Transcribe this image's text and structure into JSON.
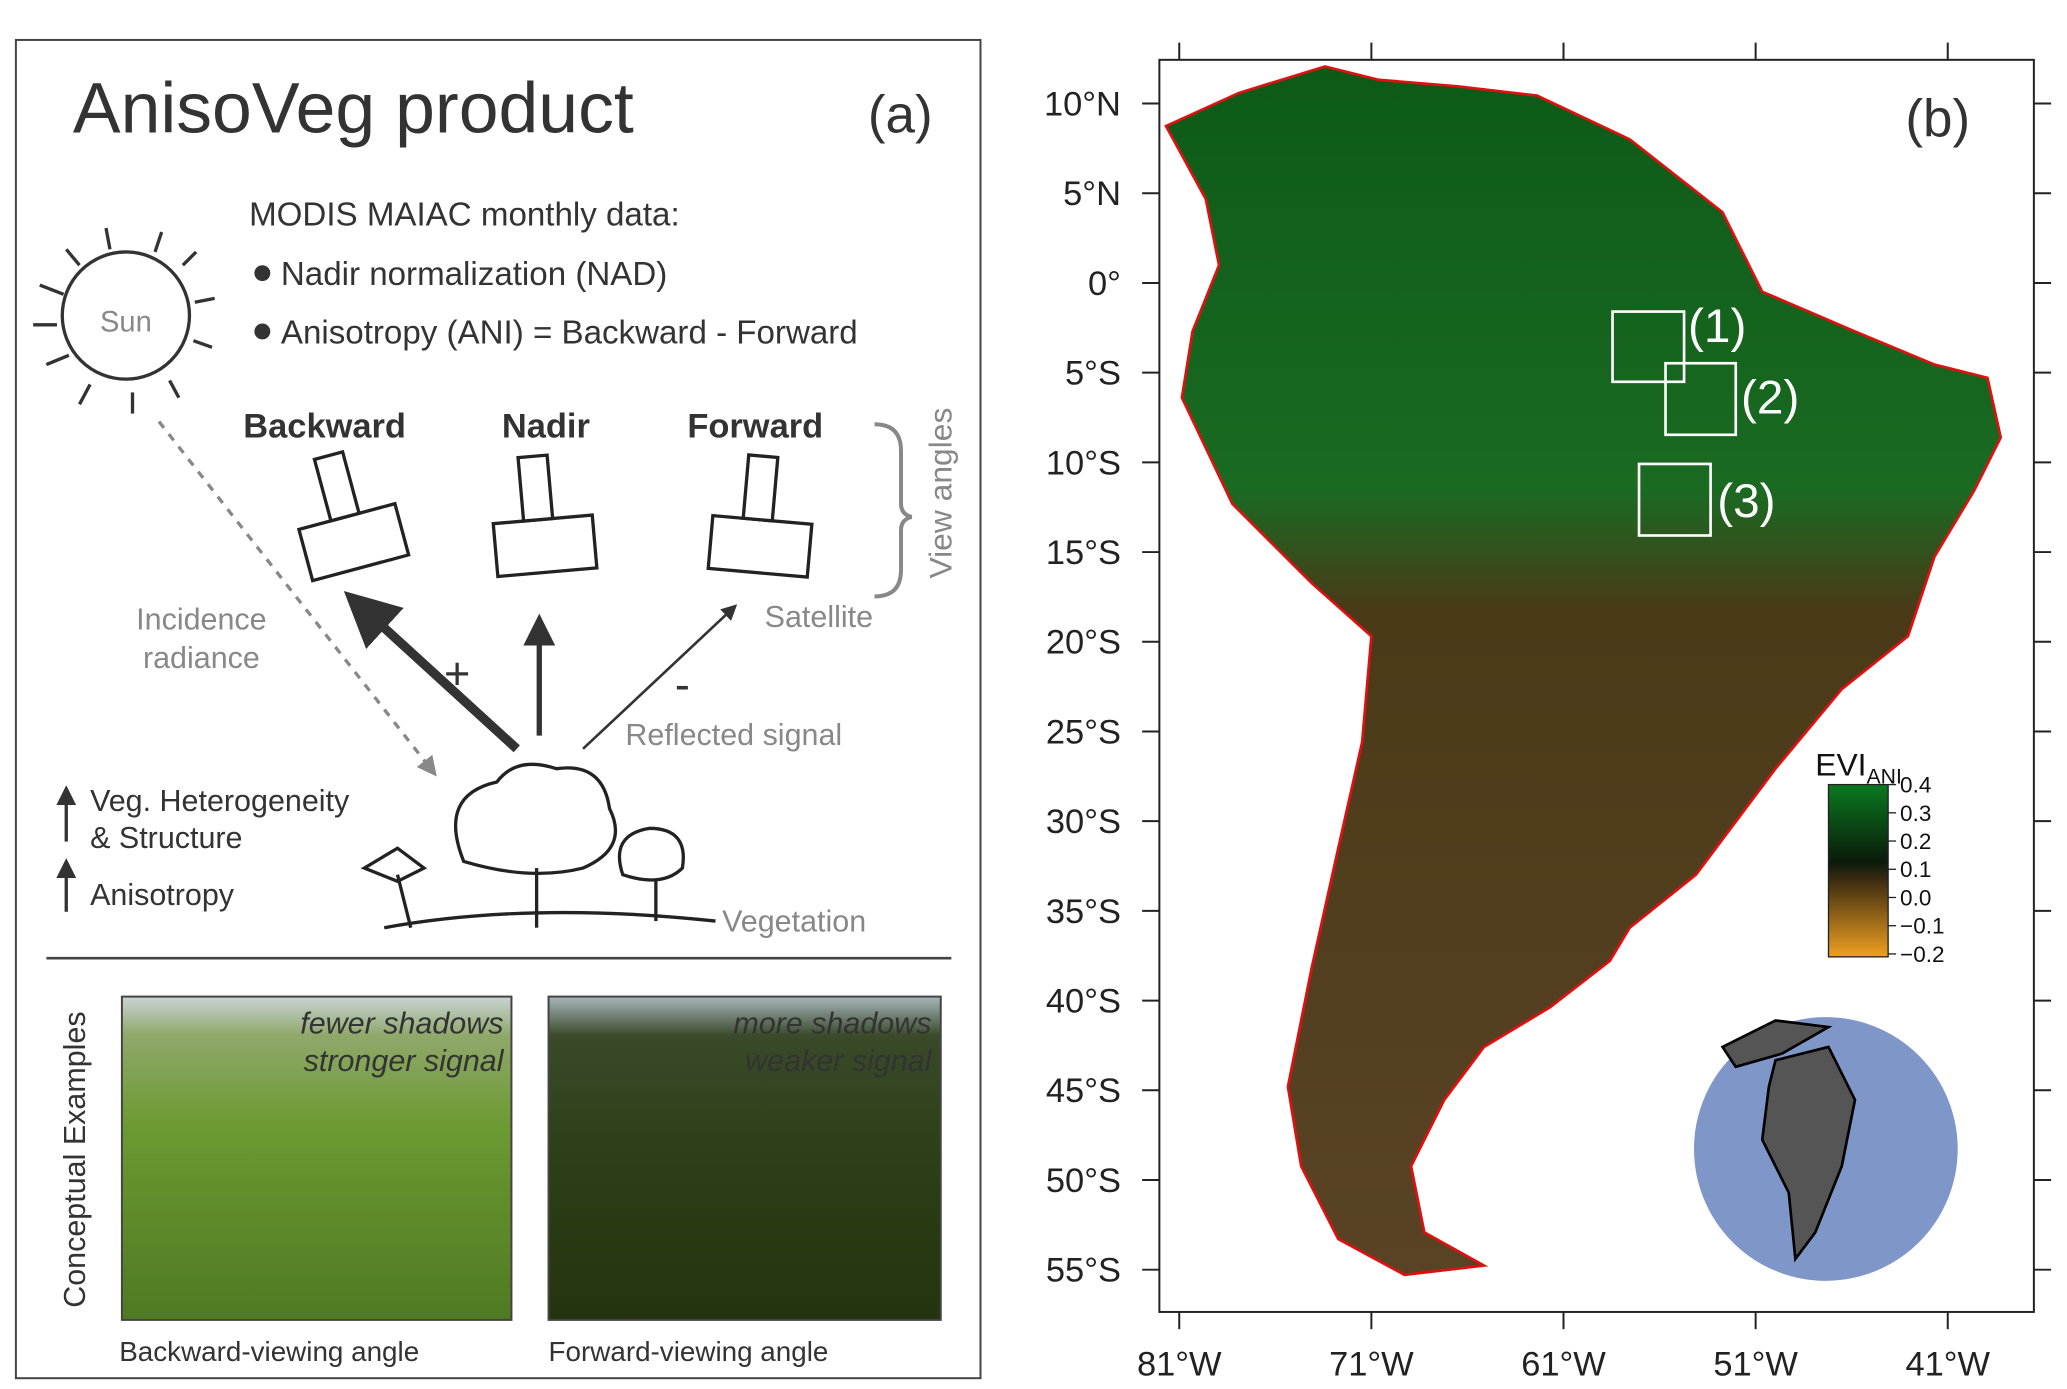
{
  "panel_a": {
    "title": "AnisoVeg product",
    "label": "(a)",
    "data_header": "MODIS MAIAC monthly data:",
    "bullets": [
      "Nadir normalization (NAD)",
      "Anisotropy (ANI) = Backward - Forward"
    ],
    "sun": "Sun",
    "view_labels": [
      "Backward",
      "Nadir",
      "Forward"
    ],
    "view_angles": "View angles",
    "incidence": [
      "Incidence",
      "radiance"
    ],
    "satellite": "Satellite",
    "plus": "+",
    "minus": "-",
    "reflected": "Reflected signal",
    "increases": [
      "Veg. Heterogeneity",
      "& Structure",
      "Anisotropy"
    ],
    "vegetation": "Vegetation",
    "examples": {
      "title": "Conceptual Examples",
      "photos": [
        {
          "overlay": [
            "fewer shadows",
            "stronger signal"
          ],
          "caption": "Backward-viewing angle"
        },
        {
          "overlay": [
            "more shadows",
            "weaker signal"
          ],
          "caption": "Forward-viewing angle"
        }
      ]
    }
  },
  "panel_b": {
    "label": "(b)",
    "lat_ticks": [
      {
        "value": 10,
        "label": "10°N"
      },
      {
        "value": 5,
        "label": "5°N"
      },
      {
        "value": 0,
        "label": "0°"
      },
      {
        "value": -5,
        "label": "5°S"
      },
      {
        "value": -10,
        "label": "10°S"
      },
      {
        "value": -15,
        "label": "15°S"
      },
      {
        "value": -20,
        "label": "20°S"
      },
      {
        "value": -25,
        "label": "25°S"
      },
      {
        "value": -30,
        "label": "30°S"
      },
      {
        "value": -35,
        "label": "35°S"
      },
      {
        "value": -40,
        "label": "40°S"
      },
      {
        "value": -45,
        "label": "45°S"
      },
      {
        "value": -50,
        "label": "50°S"
      },
      {
        "value": -55,
        "label": "55°S"
      }
    ],
    "lon_ticks": [
      {
        "value": -81,
        "label": "81°W"
      },
      {
        "value": -71,
        "label": "71°W"
      },
      {
        "value": -61,
        "label": "61°W"
      },
      {
        "value": -51,
        "label": "51°W"
      },
      {
        "value": -41,
        "label": "41°W"
      }
    ],
    "boxes": [
      "(1)",
      "(2)",
      "(3)"
    ],
    "legend": {
      "title": "EVI",
      "subscript": "ANI",
      "ticks": [
        0.4,
        0.3,
        0.2,
        0.1,
        {
          "value": 0,
          "label": "0.0"
        },
        {
          "value": -0.1,
          "label": "−0.1"
        },
        {
          "value": -0.2,
          "label": "−0.2"
        }
      ]
    }
  }
}
